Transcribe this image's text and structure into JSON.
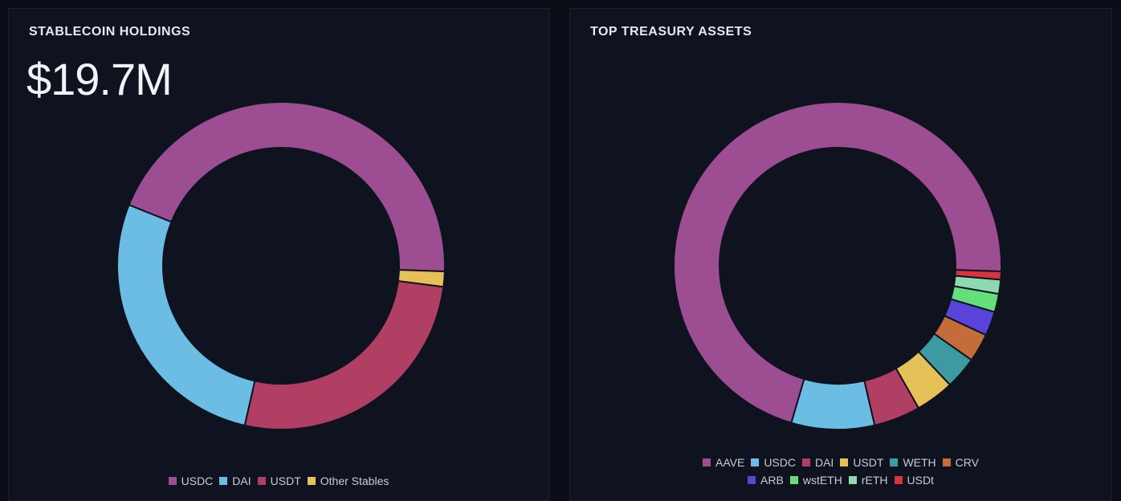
{
  "panels": {
    "stablecoins": {
      "title": "STABLECOIN HOLDINGS",
      "total": "$19.7M"
    },
    "treasury": {
      "title": "TOP TREASURY ASSETS"
    }
  },
  "chart_data": [
    {
      "type": "pie",
      "style": "donut",
      "title": "STABLECOIN HOLDINGS",
      "legend_position": "bottom",
      "categories": [
        "USDC",
        "DAI",
        "USDT",
        "Other Stables"
      ],
      "values": [
        44.5,
        27.5,
        26.5,
        1.5
      ],
      "colors": [
        "#9d4e93",
        "#6bbde3",
        "#b13f64",
        "#e5c157"
      ],
      "start_angle_deg": 90
    },
    {
      "type": "pie",
      "style": "donut",
      "title": "TOP TREASURY ASSETS",
      "legend_position": "bottom",
      "categories": [
        "AAVE",
        "USDC",
        "DAI",
        "USDT",
        "WETH",
        "CRV",
        "ARB",
        "wstETH",
        "rETH",
        "USDt"
      ],
      "values": [
        71.0,
        8.2,
        4.6,
        3.8,
        3.2,
        2.8,
        2.4,
        1.8,
        1.4,
        0.8
      ],
      "colors": [
        "#9d4e93",
        "#6bbde3",
        "#b13f64",
        "#e5c157",
        "#3d9aa3",
        "#c56c3b",
        "#5944d9",
        "#63e07c",
        "#8fd9b2",
        "#d8343e"
      ],
      "start_angle_deg": 90
    }
  ]
}
